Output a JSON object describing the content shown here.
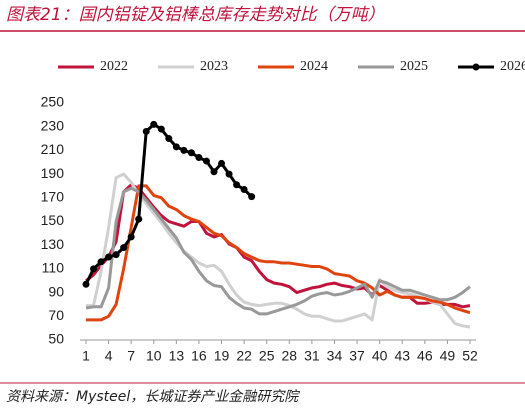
{
  "chart_data": {
    "type": "line",
    "title": "图表21：国内铝锭及铝棒总库存走势对比（万吨）",
    "source": "资料来源：Mysteel，长城证券产业金融研究院",
    "x": [
      1,
      2,
      3,
      4,
      5,
      6,
      7,
      8,
      9,
      10,
      11,
      12,
      13,
      14,
      15,
      16,
      17,
      18,
      19,
      20,
      21,
      22,
      23,
      24,
      25,
      26,
      27,
      28,
      29,
      30,
      31,
      32,
      33,
      34,
      35,
      36,
      37,
      38,
      39,
      40,
      41,
      42,
      43,
      44,
      45,
      46,
      47,
      48,
      49,
      50,
      51,
      52
    ],
    "xlim": [
      1,
      52
    ],
    "xticks": [
      1,
      4,
      7,
      10,
      13,
      16,
      19,
      22,
      25,
      28,
      31,
      34,
      37,
      40,
      43,
      46,
      49,
      52
    ],
    "ylim": [
      50,
      250
    ],
    "yticks": [
      50,
      70,
      90,
      110,
      130,
      150,
      170,
      190,
      210,
      230,
      250
    ],
    "grid": false,
    "legend": "top",
    "series": [
      {
        "name": "2022",
        "color": "#c0143c",
        "values": [
          100,
          105,
          113,
          120,
          133,
          175,
          181,
          178,
          170,
          162,
          155,
          150,
          148,
          146,
          150,
          150,
          140,
          137,
          139,
          131,
          128,
          120,
          117,
          108,
          101,
          98,
          97,
          95,
          90,
          92,
          94,
          95,
          97,
          98,
          96,
          95,
          93,
          94,
          88,
          96,
          92,
          88,
          86,
          86,
          81,
          81,
          82,
          80,
          80,
          80,
          78,
          79
        ]
      },
      {
        "name": "2023",
        "color": "#d0d0d0",
        "values": [
          79,
          79,
          108,
          145,
          187,
          190,
          183,
          173,
          165,
          157,
          149,
          140,
          132,
          125,
          120,
          115,
          112,
          113,
          108,
          97,
          88,
          82,
          80,
          79,
          80,
          81,
          81,
          79,
          76,
          72,
          70,
          70,
          68,
          66,
          66,
          68,
          70,
          72,
          67,
          101,
          95,
          92,
          90,
          89,
          87,
          85,
          82,
          80,
          72,
          64,
          62,
          61
        ]
      },
      {
        "name": "2024",
        "color": "#e0440e",
        "values": [
          67,
          67,
          67,
          70,
          80,
          110,
          145,
          180,
          180,
          172,
          170,
          163,
          160,
          155,
          152,
          150,
          145,
          140,
          138,
          132,
          128,
          123,
          120,
          117,
          116,
          116,
          115,
          115,
          114,
          113,
          112,
          112,
          110,
          106,
          105,
          104,
          100,
          98,
          94,
          88,
          91,
          88,
          86,
          86,
          86,
          85,
          83,
          82,
          80,
          77,
          75,
          73
        ]
      },
      {
        "name": "2025",
        "color": "#999999",
        "values": [
          77,
          78,
          78,
          94,
          150,
          175,
          178,
          175,
          168,
          160,
          152,
          144,
          136,
          124,
          118,
          108,
          100,
          96,
          95,
          86,
          81,
          77,
          76,
          72,
          72,
          74,
          76,
          78,
          80,
          83,
          87,
          89,
          90,
          88,
          89,
          91,
          94,
          97,
          86,
          100,
          98,
          95,
          92,
          92,
          90,
          88,
          86,
          84,
          84,
          86,
          90,
          95
        ]
      },
      {
        "name": "2026",
        "color": "#000000",
        "marker": "circle",
        "values": [
          97,
          110,
          116,
          120,
          122,
          128,
          137,
          152,
          226,
          232,
          228,
          220,
          213,
          210,
          208,
          204,
          201,
          192,
          199,
          190,
          181,
          177,
          171,
          null,
          null,
          null,
          null,
          null,
          null,
          null,
          null,
          null,
          null,
          null,
          null,
          null,
          null,
          null,
          null,
          null,
          null,
          null,
          null,
          null,
          null,
          null,
          null,
          null,
          null,
          null,
          null,
          null
        ]
      }
    ]
  }
}
